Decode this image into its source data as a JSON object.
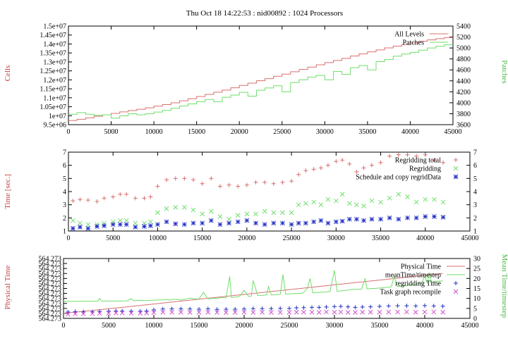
{
  "figure_title": "Thu Oct 18 14:22:53 : nid00892 : 1024 Processors",
  "colors": {
    "red": "#d8706f",
    "green": "#6fdf6a",
    "blue": "#2430c8",
    "magenta": "#d04fd0",
    "axis_label_red": "#c0403f",
    "axis_label_green": "#45b845"
  },
  "chart_data": [
    {
      "type": "line",
      "step": true,
      "ylabel": "Cells",
      "y2label": "Patches",
      "xlim": [
        0,
        45000
      ],
      "xticks": [
        "0",
        "5000",
        "10000",
        "15000",
        "20000",
        "25000",
        "30000",
        "35000",
        "40000",
        "45000"
      ],
      "ylim": [
        9500000,
        15000000
      ],
      "yticks": [
        "9.5e+06",
        "1e+07",
        "1.05e+07",
        "1.1e+07",
        "1.15e+07",
        "1.2e+07",
        "1.25e+07",
        "1.3e+07",
        "1.35e+07",
        "1.4e+07",
        "1.45e+07",
        "1.5e+07"
      ],
      "y2lim": [
        3600,
        5400
      ],
      "y2ticks": [
        "3600",
        "3800",
        "4000",
        "4200",
        "4400",
        "4600",
        "4800",
        "5000",
        "5200",
        "5400"
      ],
      "legend_position": "top-right",
      "series": [
        {
          "name": "All Levels",
          "color": "red",
          "axis": "y",
          "x": [
            0,
            1000,
            2000,
            3000,
            4000,
            5000,
            6000,
            7000,
            8000,
            9000,
            10000,
            11000,
            12000,
            13000,
            14000,
            15000,
            16000,
            17000,
            18000,
            19000,
            20000,
            21000,
            22000,
            23000,
            24000,
            25000,
            26000,
            27000,
            28000,
            29000,
            30000,
            31000,
            32000,
            33000,
            34000,
            35000,
            36000,
            37000,
            38000,
            39000,
            40000,
            41000,
            42000,
            43000,
            44000
          ],
          "y": [
            9730000,
            9800000,
            9880000,
            9970000,
            10050000,
            10130000,
            10210000,
            10290000,
            10360000,
            10440000,
            10530000,
            10620000,
            10720000,
            10830000,
            10950000,
            11070000,
            11190000,
            11310000,
            11430000,
            11560000,
            11690000,
            11820000,
            11950000,
            12070000,
            12200000,
            12320000,
            12450000,
            12580000,
            12710000,
            12840000,
            12960000,
            13080000,
            13200000,
            13330000,
            13450000,
            13560000,
            13670000,
            13780000,
            13880000,
            13970000,
            14060000,
            14150000,
            14230000,
            14300000,
            14360000
          ]
        },
        {
          "name": "Patches",
          "color": "green",
          "axis": "y2",
          "x": [
            0,
            1000,
            2000,
            3000,
            4000,
            5000,
            6000,
            7000,
            8000,
            9000,
            10000,
            11000,
            12000,
            13000,
            14000,
            15000,
            16000,
            17000,
            18000,
            19000,
            20000,
            21000,
            22000,
            23000,
            24000,
            25000,
            26000,
            27000,
            28000,
            29000,
            30000,
            31000,
            32000,
            33000,
            34000,
            35000,
            36000,
            37000,
            38000,
            39000,
            40000,
            41000,
            42000,
            43000,
            44000
          ],
          "y": [
            3790,
            3820,
            3790,
            3770,
            3780,
            3720,
            3760,
            3800,
            3780,
            3800,
            3830,
            3860,
            3900,
            3940,
            3980,
            4020,
            4060,
            4020,
            4100,
            4140,
            4190,
            4120,
            4230,
            4270,
            4310,
            4200,
            4370,
            4420,
            4470,
            4500,
            4420,
            4570,
            4520,
            4640,
            4680,
            4600,
            4750,
            4790,
            4850,
            4890,
            4920,
            4960,
            5000,
            5030,
            5060
          ]
        }
      ]
    },
    {
      "type": "scatter",
      "ylabel": "Time [sec.]",
      "xlim": [
        0,
        45000
      ],
      "xticks": [
        "0",
        "5000",
        "10000",
        "15000",
        "20000",
        "25000",
        "30000",
        "35000",
        "40000",
        "45000"
      ],
      "ylim": [
        1,
        7
      ],
      "yticks": [
        "1",
        "2",
        "3",
        "4",
        "5",
        "6",
        "7"
      ],
      "y2ticks": [
        "1",
        "2",
        "3",
        "4",
        "5",
        "6",
        "7"
      ],
      "legend_position": "top-right",
      "series": [
        {
          "name": "Regridding total",
          "color": "red",
          "marker": "+",
          "x": [
            500,
            1300,
            2200,
            3200,
            4000,
            5000,
            5800,
            6500,
            7500,
            8500,
            9200,
            10000,
            11000,
            12000,
            13000,
            14000,
            15000,
            16000,
            17000,
            18000,
            19000,
            20000,
            21000,
            22000,
            23000,
            24000,
            25000,
            25800,
            26600,
            27500,
            28300,
            29100,
            30000,
            30700,
            31500,
            32300,
            33100,
            34000,
            35000,
            36000,
            37000,
            38000,
            39000,
            40000,
            41000,
            42000
          ],
          "y": [
            3.3,
            3.4,
            3.35,
            3.25,
            3.5,
            3.6,
            3.8,
            3.8,
            3.5,
            3.5,
            3.6,
            4.4,
            4.9,
            5.0,
            5.0,
            4.9,
            4.6,
            5.0,
            4.4,
            4.5,
            4.4,
            4.5,
            4.7,
            4.7,
            4.6,
            4.7,
            4.8,
            5.3,
            5.6,
            5.7,
            5.8,
            6.0,
            6.3,
            6.4,
            6.1,
            5.5,
            5.8,
            6.0,
            6.2,
            6.7,
            6.8,
            6.8,
            6.7,
            6.8,
            6.4,
            6.2
          ]
        },
        {
          "name": "Regridding",
          "color": "green",
          "marker": "x",
          "x": [
            500,
            1300,
            2200,
            3200,
            4000,
            5000,
            5800,
            6500,
            7500,
            8500,
            9200,
            10000,
            11000,
            12000,
            13000,
            14000,
            15000,
            16000,
            17000,
            18000,
            19000,
            20000,
            21000,
            22000,
            23000,
            24000,
            25000,
            25800,
            26600,
            27500,
            28300,
            29100,
            30000,
            30700,
            31500,
            32300,
            33100,
            34000,
            35000,
            36000,
            37000,
            38000,
            39000,
            40000,
            41000,
            42000
          ],
          "y": [
            1.8,
            1.6,
            1.5,
            1.5,
            1.6,
            1.7,
            1.8,
            1.8,
            1.6,
            1.6,
            1.7,
            2.4,
            2.7,
            2.8,
            2.8,
            2.6,
            2.3,
            2.5,
            2.1,
            1.9,
            2.2,
            2.3,
            2.3,
            2.5,
            2.4,
            2.4,
            2.4,
            3.0,
            3.1,
            3.2,
            3.0,
            3.4,
            3.3,
            3.8,
            3.1,
            3.0,
            2.9,
            3.3,
            3.2,
            3.5,
            3.8,
            3.6,
            3.2,
            3.4,
            3.4,
            3.2
          ]
        },
        {
          "name": "Schedule and copy regridData",
          "color": "blue",
          "marker": "*",
          "x": [
            500,
            1300,
            2200,
            3200,
            4000,
            5000,
            5800,
            6500,
            7500,
            8500,
            9200,
            10000,
            11000,
            12000,
            13000,
            14000,
            15000,
            16000,
            17000,
            18000,
            19000,
            20000,
            21000,
            22000,
            23000,
            24000,
            25000,
            25800,
            26600,
            27500,
            28300,
            29100,
            30000,
            30700,
            31500,
            32300,
            33100,
            34000,
            35000,
            36000,
            37000,
            38000,
            39000,
            40000,
            41000,
            42000
          ],
          "y": [
            1.2,
            1.3,
            1.2,
            1.35,
            1.4,
            1.5,
            1.5,
            1.5,
            1.3,
            1.35,
            1.4,
            1.5,
            1.7,
            1.55,
            1.5,
            1.6,
            1.6,
            1.8,
            1.5,
            1.6,
            1.7,
            1.8,
            1.6,
            1.5,
            1.6,
            1.6,
            1.5,
            1.6,
            1.6,
            1.7,
            1.8,
            1.6,
            1.7,
            1.75,
            1.9,
            1.9,
            1.8,
            1.9,
            1.9,
            2.0,
            1.9,
            2.0,
            2.0,
            2.1,
            2.1,
            2.05
          ]
        }
      ]
    },
    {
      "type": "line",
      "ylabel": "Physical Time",
      "y2label": "Mean Time/timestep",
      "xlim": [
        0,
        45000
      ],
      "xticks": [
        "0",
        "5000",
        "10000",
        "15000",
        "20000",
        "25000",
        "30000",
        "35000",
        "40000",
        "45000"
      ],
      "yticks": [
        "564.273",
        "564.273",
        "564.273",
        "564.273",
        "564.273",
        "564.273",
        "564.273",
        "564.273",
        "564.273",
        "564.273",
        "564.273",
        "564.273",
        "564.273"
      ],
      "y2lim": [
        0,
        30
      ],
      "y2ticks": [
        "0",
        "5",
        "10",
        "15",
        "20",
        "25",
        "30"
      ],
      "legend_position": "top-right",
      "series": [
        {
          "name": "Physical Time",
          "color": "red",
          "type": "line",
          "axis": "y2",
          "x": [
            0,
            5000,
            10000,
            15000,
            20000,
            25000,
            30000,
            35000,
            40000,
            42000
          ],
          "y": [
            2.5,
            4.8,
            7.2,
            9.6,
            12.0,
            14.4,
            16.8,
            19.2,
            21.6,
            22.5
          ]
        },
        {
          "name": "meanTime/timestep",
          "color": "green",
          "type": "line",
          "axis": "y2",
          "x": [
            0,
            1000,
            2000,
            3000,
            3800,
            4000,
            4200,
            5000,
            6000,
            7000,
            7500,
            7800,
            8000,
            8500,
            9000,
            9500,
            10000,
            11000,
            11500,
            11800,
            12000,
            12500,
            13000,
            13500,
            14000,
            14500,
            15000,
            15500,
            16000,
            16500,
            17000,
            17500,
            18000,
            18400,
            18600,
            18800,
            19000,
            19500,
            20000,
            20500,
            20800,
            21000,
            21500,
            22000,
            22500,
            22700,
            23000,
            23500,
            24000,
            24300,
            24600,
            25000,
            25500,
            26000,
            26500,
            27000,
            27300,
            27600,
            28000,
            28500,
            29000,
            29500,
            30000,
            30300,
            30600,
            31000,
            31500,
            32000,
            32500,
            33000,
            33400,
            33600,
            33800,
            34000,
            34500,
            35000,
            35500,
            36000,
            36300,
            36600,
            37000,
            37500,
            38000,
            38500,
            39000,
            39300,
            39600,
            40000,
            40300,
            40500,
            40700,
            41000,
            42000
          ],
          "y": [
            8.5,
            8.5,
            8.6,
            8.6,
            8.6,
            10,
            8.6,
            8.7,
            8.7,
            8.8,
            9.8,
            8.8,
            8.9,
            9.0,
            8.9,
            9.0,
            9.1,
            9.3,
            9.5,
            9.1,
            9.4,
            9.6,
            9.2,
            9.6,
            10.2,
            9.8,
            9.7,
            13,
            9.8,
            10.1,
            10.0,
            10.5,
            10.3,
            21,
            10.5,
            10.6,
            10.6,
            11,
            14,
            11.0,
            11.2,
            19,
            11.4,
            11.5,
            11.8,
            16,
            11.7,
            11.9,
            12.0,
            22,
            12.1,
            12.2,
            12.5,
            12.4,
            12.6,
            15,
            20,
            12.8,
            12.9,
            13.1,
            13.2,
            13.4,
            24,
            13.6,
            13.7,
            13.9,
            14.2,
            14.5,
            14.6,
            14.6,
            20,
            14.8,
            14.8,
            15,
            15,
            15.2,
            15.5,
            15.6,
            15.8,
            21,
            16,
            16.2,
            16.5,
            16.8,
            17,
            17.5,
            17.5,
            21,
            17.8,
            23,
            18,
            18.5,
            18.8
          ]
        },
        {
          "name": "regridding Time",
          "color": "blue",
          "marker": "+",
          "axis": "y2",
          "x": [
            500,
            1300,
            2200,
            3200,
            4000,
            5000,
            5800,
            6500,
            7500,
            8500,
            9200,
            10000,
            11000,
            12000,
            13000,
            14000,
            15000,
            16000,
            17000,
            18000,
            19000,
            20000,
            21000,
            22000,
            23000,
            24000,
            25000,
            25800,
            26600,
            27500,
            28300,
            29100,
            30000,
            30700,
            31500,
            32300,
            33100,
            34000,
            35000,
            36000,
            37000,
            38000,
            39000,
            40000,
            41000,
            42000
          ],
          "y": [
            3.2,
            3.4,
            3.3,
            3.3,
            3.5,
            3.6,
            3.7,
            3.7,
            3.6,
            3.6,
            3.7,
            4.3,
            4.7,
            4.8,
            4.8,
            4.7,
            4.6,
            4.8,
            4.5,
            4.6,
            4.6,
            4.7,
            4.9,
            4.9,
            4.9,
            5.0,
            5.0,
            5.3,
            5.4,
            5.5,
            5.5,
            5.7,
            5.9,
            6.0,
            5.8,
            5.5,
            5.7,
            5.8,
            6.0,
            6.2,
            6.3,
            6.3,
            6.2,
            6.4,
            6.2,
            6.1
          ]
        },
        {
          "name": "Task graph recompile",
          "color": "magenta",
          "marker": "x",
          "axis": "y2",
          "x": [
            500,
            1300,
            2200,
            3200,
            4000,
            5000,
            5800,
            6500,
            7500,
            8500,
            9200,
            10000,
            11000,
            12000,
            13000,
            14000,
            15000,
            16000,
            17000,
            18000,
            19000,
            20000,
            21000,
            22000,
            23000,
            24000,
            25000,
            25800,
            26600,
            27500,
            28300,
            29100,
            30000,
            30700,
            31500,
            32300,
            33100,
            34000,
            35000,
            36000,
            37000,
            38000,
            39000,
            40000,
            41000,
            42000
          ],
          "y": [
            2.1,
            2.3,
            2.3,
            2.4,
            2.5,
            2.6,
            2.7,
            2.7,
            2.6,
            2.6,
            2.7,
            2.9,
            3.1,
            3.1,
            3.1,
            3.0,
            3.0,
            3.1,
            3.0,
            2.9,
            3.0,
            3.1,
            3.0,
            3.1,
            3.0,
            3.0,
            3.0,
            3.1,
            3.1,
            3.1,
            3.0,
            3.2,
            3.1,
            3.2,
            3.0,
            3.0,
            3.1,
            3.1,
            3.1,
            3.2,
            3.2,
            3.2,
            3.1,
            3.2,
            3.2,
            3.1
          ]
        }
      ]
    }
  ]
}
